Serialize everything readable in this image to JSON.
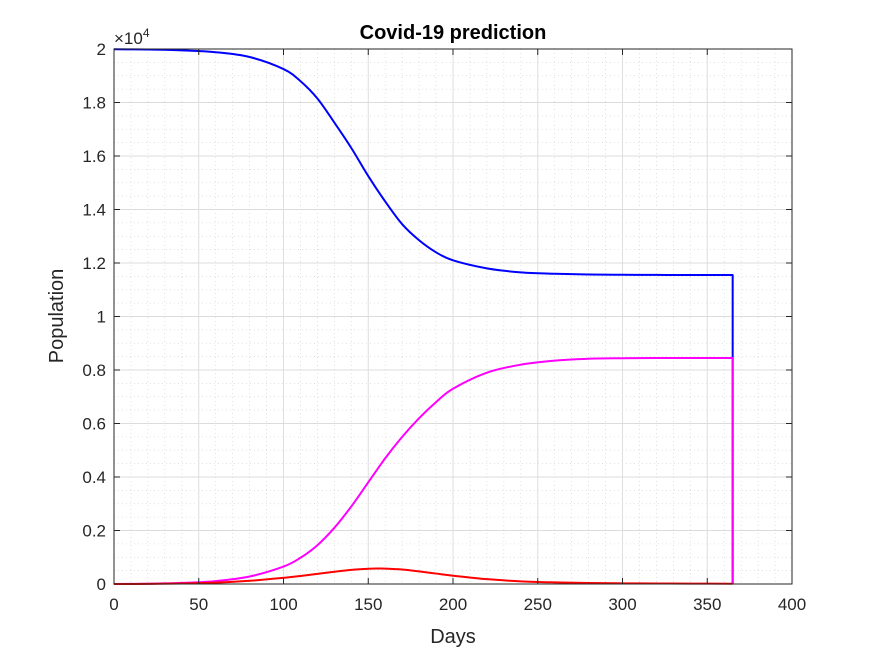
{
  "chart_data": {
    "type": "line",
    "title": "Covid-19 prediction",
    "xlabel": "Days",
    "ylabel": "Population",
    "xlim": [
      0,
      400
    ],
    "ylim": [
      0,
      20000
    ],
    "y_exponent_label": {
      "base": "×10",
      "power": "4"
    },
    "xticks": [
      "0",
      "50",
      "100",
      "150",
      "200",
      "250",
      "300",
      "350",
      "400"
    ],
    "yticks": [
      "0",
      "0.2",
      "0.4",
      "0.6",
      "0.8",
      "1",
      "1.2",
      "1.4",
      "1.6",
      "1.8",
      "2"
    ],
    "grid": "major and minor, dotted",
    "series": [
      {
        "color": "#0000ff",
        "x": [
          0,
          20,
          40,
          60,
          80,
          100,
          110,
          120,
          130,
          140,
          150,
          160,
          170,
          180,
          190,
          200,
          220,
          240,
          260,
          280,
          300,
          320,
          340,
          365,
          365
        ],
        "y": [
          19990,
          19980,
          19950,
          19880,
          19700,
          19250,
          18800,
          18150,
          17250,
          16300,
          15250,
          14300,
          13450,
          12850,
          12400,
          12100,
          11800,
          11650,
          11600,
          11570,
          11560,
          11555,
          11550,
          11550,
          0
        ]
      },
      {
        "color": "#ff00ff",
        "x": [
          0,
          20,
          40,
          60,
          80,
          100,
          110,
          120,
          130,
          140,
          150,
          160,
          170,
          180,
          190,
          200,
          220,
          240,
          260,
          280,
          300,
          320,
          340,
          365,
          365
        ],
        "y": [
          0,
          10,
          40,
          110,
          280,
          650,
          980,
          1450,
          2100,
          2900,
          3800,
          4700,
          5500,
          6200,
          6800,
          7300,
          7900,
          8200,
          8350,
          8420,
          8440,
          8450,
          8450,
          8450,
          0
        ]
      },
      {
        "color": "#ff0000",
        "x": [
          0,
          20,
          40,
          60,
          80,
          100,
          110,
          120,
          130,
          140,
          150,
          155,
          160,
          170,
          180,
          190,
          200,
          220,
          240,
          260,
          280,
          300,
          320,
          340,
          365
        ],
        "y": [
          0,
          5,
          20,
          50,
          120,
          230,
          300,
          380,
          460,
          530,
          570,
          580,
          575,
          540,
          470,
          390,
          310,
          180,
          100,
          60,
          35,
          25,
          20,
          15,
          10
        ]
      }
    ]
  }
}
